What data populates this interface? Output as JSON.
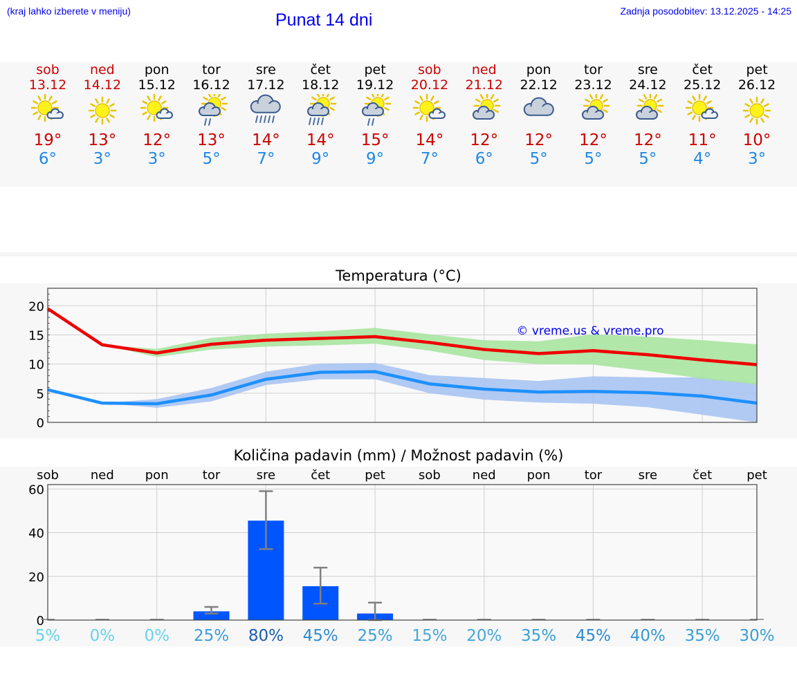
{
  "header": {
    "hint": "(kraj lahko izberete v meniju)",
    "title": "Punat 14 dni",
    "updated": "Zadnja posodobitev: 13.12.2025 - 14:25"
  },
  "days": [
    {
      "name": "sob",
      "date": "13.12",
      "weekend": true,
      "icon": "sun-small-cloud-icon",
      "tmax": "19°",
      "tmin": "6°"
    },
    {
      "name": "ned",
      "date": "14.12",
      "weekend": true,
      "icon": "sun-icon",
      "tmax": "13°",
      "tmin": "3°"
    },
    {
      "name": "pon",
      "date": "15.12",
      "weekend": false,
      "icon": "sun-small-cloud-icon",
      "tmax": "12°",
      "tmin": "3°"
    },
    {
      "name": "tor",
      "date": "16.12",
      "weekend": false,
      "icon": "sun-cloud-rain-icon",
      "tmax": "13°",
      "tmin": "5°"
    },
    {
      "name": "sre",
      "date": "17.12",
      "weekend": false,
      "icon": "cloud-heavy-rain-icon",
      "tmax": "14°",
      "tmin": "7°"
    },
    {
      "name": "čet",
      "date": "18.12",
      "weekend": false,
      "icon": "sun-cloud-heavy-rain-icon",
      "tmax": "14°",
      "tmin": "9°"
    },
    {
      "name": "pet",
      "date": "19.12",
      "weekend": false,
      "icon": "sun-cloud-rain-icon",
      "tmax": "15°",
      "tmin": "9°"
    },
    {
      "name": "sob",
      "date": "20.12",
      "weekend": true,
      "icon": "sun-small-cloud-icon",
      "tmax": "14°",
      "tmin": "7°"
    },
    {
      "name": "ned",
      "date": "21.12",
      "weekend": true,
      "icon": "sun-cloud-icon",
      "tmax": "12°",
      "tmin": "6°"
    },
    {
      "name": "pon",
      "date": "22.12",
      "weekend": false,
      "icon": "cloud-icon",
      "tmax": "12°",
      "tmin": "5°"
    },
    {
      "name": "tor",
      "date": "23.12",
      "weekend": false,
      "icon": "sun-cloud-icon",
      "tmax": "12°",
      "tmin": "5°"
    },
    {
      "name": "sre",
      "date": "24.12",
      "weekend": false,
      "icon": "sun-cloud-icon",
      "tmax": "12°",
      "tmin": "5°"
    },
    {
      "name": "čet",
      "date": "25.12",
      "weekend": false,
      "icon": "sun-small-cloud-icon",
      "tmax": "11°",
      "tmin": "4°"
    },
    {
      "name": "pet",
      "date": "26.12",
      "weekend": false,
      "icon": "sun-icon",
      "tmax": "10°",
      "tmin": "3°"
    }
  ],
  "colors": {
    "max": "#ee0000",
    "min": "#1e90ff",
    "max_band": "#a8e4a0",
    "min_band": "#a9c4f2",
    "bar": "#0055ff",
    "panel": "#f7f7f7",
    "grid": "#c8c8c8",
    "link": "#0000ee"
  },
  "chart_data": [
    {
      "type": "line",
      "title": "Temperatura (°C)",
      "watermark": "© vreme.us & vreme.pro",
      "ylim": [
        0,
        23
      ],
      "yticks": [
        0,
        5,
        10,
        15,
        20
      ],
      "series": [
        {
          "name": "max",
          "values": [
            19.5,
            13.3,
            11.9,
            13.4,
            14.1,
            14.4,
            14.7,
            13.7,
            12.5,
            11.8,
            12.3,
            11.6,
            10.7,
            9.9
          ],
          "band_low": [
            19.5,
            13.3,
            11.2,
            12.5,
            13.0,
            13.2,
            13.5,
            12.3,
            10.7,
            10.0,
            9.9,
            8.8,
            7.5,
            6.5
          ],
          "band_high": [
            19.5,
            13.3,
            12.6,
            14.5,
            15.2,
            15.6,
            16.2,
            15.1,
            14.1,
            13.9,
            15.1,
            14.7,
            14.1,
            13.4
          ]
        },
        {
          "name": "min",
          "values": [
            5.6,
            3.3,
            3.2,
            4.7,
            7.4,
            8.6,
            8.7,
            6.6,
            5.7,
            5.2,
            5.3,
            5.1,
            4.5,
            3.3
          ],
          "band_low": [
            5.6,
            3.3,
            2.5,
            3.6,
            6.4,
            7.4,
            7.4,
            5.0,
            3.9,
            3.4,
            3.2,
            2.6,
            1.3,
            0.0
          ],
          "band_high": [
            5.6,
            3.3,
            4.0,
            5.9,
            8.7,
            10.1,
            10.2,
            8.1,
            7.6,
            7.1,
            7.9,
            7.7,
            7.7,
            6.7
          ]
        }
      ]
    },
    {
      "type": "bar",
      "title": "Količina padavin (mm) / Možnost padavin (%)",
      "categories": [
        "sob",
        "ned",
        "pon",
        "tor",
        "sre",
        "čet",
        "pet",
        "sob",
        "ned",
        "pon",
        "tor",
        "sre",
        "čet",
        "pet"
      ],
      "ylim": [
        0,
        62
      ],
      "yticks": [
        0,
        20,
        40,
        60
      ],
      "values": [
        0,
        0,
        0,
        4,
        45.5,
        15.5,
        3,
        0,
        0,
        0,
        0,
        0,
        0,
        0
      ],
      "error_low": [
        0,
        0,
        0,
        3,
        32.5,
        7.5,
        0,
        0,
        0,
        0,
        0,
        0,
        0,
        0
      ],
      "error_high": [
        0,
        0,
        0,
        6,
        59,
        24,
        8,
        0,
        0,
        0,
        0,
        0,
        0,
        0
      ],
      "probability": [
        "5%",
        "0%",
        "0%",
        "25%",
        "80%",
        "45%",
        "25%",
        "15%",
        "20%",
        "35%",
        "45%",
        "40%",
        "35%",
        "30%"
      ],
      "probability_colors": [
        "#66d4e8",
        "#66d4e8",
        "#66d4e8",
        "#3a9fd6",
        "#1a5eb0",
        "#2f8ad0",
        "#3a9fd6",
        "#44a8d8",
        "#44a8d8",
        "#3a9fd6",
        "#2f8ad0",
        "#3499d3",
        "#3a9fd6",
        "#3a9fd6"
      ]
    }
  ]
}
